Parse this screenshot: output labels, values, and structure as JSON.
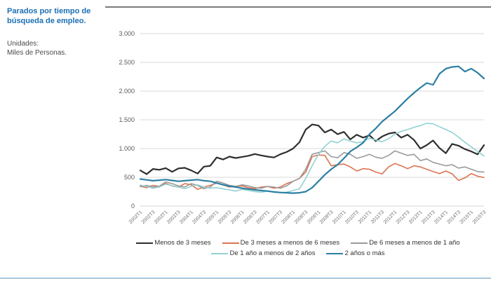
{
  "page": {
    "title_lines": [
      "Parados por tiempo de",
      "búsqueda de empleo."
    ],
    "units_label": "Unidades:",
    "units_value": "Miles de Personas."
  },
  "chart_data": {
    "type": "line",
    "title": "Parados por tiempo de búsqueda de empleo",
    "ylabel": "Miles de Personas",
    "ylim": [
      0,
      3000
    ],
    "ytick_step": 500,
    "ytick_labels": [
      "0",
      "500",
      "1.000",
      "1.500",
      "2.000",
      "2.500",
      "3.000"
    ],
    "grid": true,
    "legend_position": "bottom",
    "xtick_every": 2,
    "x": [
      "2002T1",
      "2002T2",
      "2002T3",
      "2002T4",
      "2003T1",
      "2003T2",
      "2003T3",
      "2003T4",
      "2004T1",
      "2004T2",
      "2004T3",
      "2004T4",
      "2005T1",
      "2005T2",
      "2005T3",
      "2005T4",
      "2006T1",
      "2006T2",
      "2006T3",
      "2006T4",
      "2007T1",
      "2007T2",
      "2007T3",
      "2007T4",
      "2008T1",
      "2008T2",
      "2008T3",
      "2008T4",
      "2009T1",
      "2009T2",
      "2009T3",
      "2009T4",
      "2010T1",
      "2010T2",
      "2010T3",
      "2010T4",
      "2011T1",
      "2011T2",
      "2011T3",
      "2011T4",
      "2012T1",
      "2012T2",
      "2012T3",
      "2012T4",
      "2013T1",
      "2013T2",
      "2013T3",
      "2013T4",
      "2014T1",
      "2014T2",
      "2014T3",
      "2014T4",
      "2015T1",
      "2015T2",
      "2015T3"
    ],
    "series": [
      {
        "name": "Menos de 3 meses",
        "color": "#2e2e2e",
        "width": 2.2,
        "values": [
          620,
          555,
          645,
          630,
          660,
          595,
          655,
          665,
          620,
          565,
          685,
          700,
          845,
          810,
          860,
          835,
          855,
          875,
          905,
          880,
          860,
          845,
          900,
          940,
          1000,
          1110,
          1330,
          1420,
          1400,
          1280,
          1330,
          1250,
          1290,
          1160,
          1240,
          1190,
          1230,
          1130,
          1210,
          1260,
          1280,
          1190,
          1240,
          1150,
          1000,
          1060,
          1140,
          1010,
          920,
          1080,
          1050,
          990,
          950,
          900,
          1060
        ]
      },
      {
        "name": "De 3 meses a menos de 6 meses",
        "color": "#dd7350",
        "width": 1.6,
        "values": [
          345,
          320,
          360,
          340,
          395,
          350,
          330,
          390,
          370,
          290,
          330,
          360,
          400,
          370,
          330,
          345,
          350,
          320,
          300,
          330,
          340,
          310,
          330,
          390,
          430,
          480,
          590,
          860,
          890,
          880,
          700,
          720,
          730,
          680,
          610,
          650,
          640,
          590,
          560,
          680,
          740,
          700,
          650,
          700,
          680,
          640,
          600,
          565,
          610,
          560,
          445,
          490,
          565,
          520,
          495
        ]
      },
      {
        "name": "De 6 meses a menos de 1 año",
        "color": "#9b9b9b",
        "width": 1.6,
        "values": [
          335,
          360,
          330,
          345,
          420,
          390,
          350,
          330,
          390,
          360,
          300,
          330,
          430,
          400,
          360,
          340,
          370,
          350,
          320,
          310,
          340,
          330,
          310,
          350,
          430,
          480,
          640,
          900,
          930,
          960,
          860,
          840,
          930,
          900,
          830,
          860,
          900,
          850,
          830,
          880,
          960,
          920,
          880,
          900,
          790,
          820,
          760,
          730,
          700,
          720,
          660,
          680,
          640,
          600,
          590
        ]
      },
      {
        "name": "De 1 año a menos de 2 años",
        "color": "#93d1d3",
        "width": 1.6,
        "values": [
          365,
          340,
          310,
          330,
          380,
          355,
          330,
          300,
          340,
          370,
          330,
          310,
          320,
          300,
          280,
          260,
          290,
          270,
          250,
          240,
          260,
          240,
          230,
          240,
          270,
          300,
          480,
          700,
          900,
          1040,
          1130,
          1100,
          1170,
          1130,
          1100,
          1120,
          1180,
          1150,
          1120,
          1170,
          1250,
          1300,
          1330,
          1370,
          1400,
          1440,
          1430,
          1380,
          1330,
          1280,
          1200,
          1110,
          1030,
          950,
          870
        ]
      },
      {
        "name": "2 años o más",
        "color": "#2c7fa3",
        "width": 2.2,
        "values": [
          470,
          455,
          440,
          450,
          460,
          445,
          430,
          440,
          450,
          460,
          440,
          430,
          400,
          370,
          345,
          330,
          310,
          295,
          280,
          270,
          260,
          245,
          235,
          230,
          225,
          230,
          250,
          320,
          430,
          545,
          640,
          720,
          830,
          950,
          1020,
          1100,
          1250,
          1350,
          1470,
          1560,
          1650,
          1760,
          1870,
          1970,
          2060,
          2140,
          2110,
          2300,
          2390,
          2420,
          2430,
          2340,
          2390,
          2320,
          2220
        ]
      }
    ]
  }
}
